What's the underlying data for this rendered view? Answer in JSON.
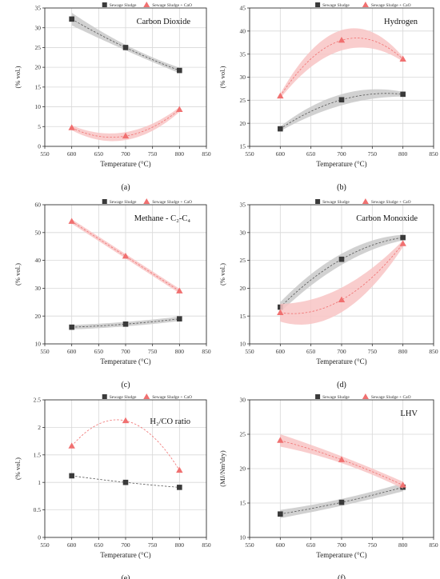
{
  "figure": {
    "x_axis_label": "Temperature (°C)",
    "legend_series": [
      "Sewage Sludge",
      "Sewage Sludge + CaO"
    ],
    "colors": {
      "sewage_sludge": "#3a3a3a",
      "sewage_sludge_cao": "#f07070",
      "band_gray": "#c9c9c9",
      "band_red": "#f8c4c4"
    }
  },
  "chart_data": [
    {
      "type": "line",
      "panel_label": "(a)",
      "title": "Carbon Dioxide",
      "xlabel": "Temperature (°C)",
      "ylabel": "(% vol.)",
      "xlim": [
        550,
        850
      ],
      "ylim": [
        0,
        35
      ],
      "xticks": [
        550,
        600,
        650,
        700,
        750,
        800,
        850
      ],
      "yticks": [
        0,
        5,
        10,
        15,
        20,
        25,
        30,
        35
      ],
      "legend_position": "top",
      "grid": true,
      "x": [
        600,
        700,
        800
      ],
      "series": [
        {
          "name": "Sewage Sludge",
          "marker": "square",
          "values": [
            32.2,
            25.0,
            19.2
          ],
          "band_halfwidth": [
            1.6,
            0.7,
            0.7
          ]
        },
        {
          "name": "Sewage Sludge + CaO",
          "marker": "triangle",
          "values": [
            4.7,
            2.6,
            9.3
          ],
          "band_halfwidth": [
            0.6,
            1.0,
            0.6
          ]
        }
      ]
    },
    {
      "type": "line",
      "panel_label": "(b)",
      "title": "Hydrogen",
      "xlabel": "Temperature (°C)",
      "ylabel": "(% vol.)",
      "xlim": [
        550,
        850
      ],
      "ylim": [
        15,
        45
      ],
      "xticks": [
        550,
        600,
        650,
        700,
        750,
        800,
        850
      ],
      "yticks": [
        15,
        20,
        25,
        30,
        35,
        40,
        45
      ],
      "legend_position": "top",
      "grid": true,
      "x": [
        600,
        700,
        800
      ],
      "series": [
        {
          "name": "Sewage Sludge",
          "marker": "square",
          "values": [
            18.8,
            25.1,
            26.3
          ],
          "band_halfwidth": [
            0.5,
            1.2,
            0.5
          ]
        },
        {
          "name": "Sewage Sludge + CaO",
          "marker": "triangle",
          "values": [
            25.9,
            38.0,
            33.9
          ],
          "band_halfwidth": [
            0.5,
            2.2,
            0.5
          ]
        }
      ]
    },
    {
      "type": "line",
      "panel_label": "(c)",
      "title": "Methane - C₂-C₄",
      "xlabel": "Temperature (°C)",
      "ylabel": "(% vol.)",
      "xlim": [
        550,
        850
      ],
      "ylim": [
        10,
        60
      ],
      "xticks": [
        550,
        600,
        650,
        700,
        750,
        800,
        850
      ],
      "yticks": [
        10,
        20,
        30,
        40,
        50,
        60
      ],
      "legend_position": "top",
      "grid": true,
      "x": [
        600,
        700,
        800
      ],
      "series": [
        {
          "name": "Sewage Sludge",
          "marker": "square",
          "values": [
            16.0,
            17.1,
            19.0
          ],
          "band_halfwidth": [
            0.8,
            0.8,
            0.8
          ]
        },
        {
          "name": "Sewage Sludge + CaO",
          "marker": "triangle",
          "values": [
            54.0,
            41.5,
            29.0
          ],
          "band_halfwidth": [
            0.8,
            0.8,
            0.8
          ]
        }
      ]
    },
    {
      "type": "line",
      "panel_label": "(d)",
      "title": "Carbon Monoxide",
      "xlabel": "Temperature (°C)",
      "ylabel": "(% vol.)",
      "xlim": [
        550,
        850
      ],
      "ylim": [
        10,
        35
      ],
      "xticks": [
        550,
        600,
        650,
        700,
        750,
        800,
        850
      ],
      "yticks": [
        10,
        15,
        20,
        25,
        30,
        35
      ],
      "legend_position": "top",
      "grid": true,
      "x": [
        600,
        700,
        800
      ],
      "series": [
        {
          "name": "Sewage Sludge",
          "marker": "square",
          "values": [
            16.6,
            25.2,
            29.1
          ],
          "band_halfwidth": [
            0.9,
            1.0,
            0.5
          ]
        },
        {
          "name": "Sewage Sludge + CaO",
          "marker": "triangle",
          "values": [
            15.6,
            17.9,
            28.0
          ],
          "band_halfwidth": [
            1.6,
            2.2,
            0.6
          ]
        }
      ]
    },
    {
      "type": "line",
      "panel_label": "(e)",
      "title": "H₂/CO ratio",
      "xlabel": "Temperature (°C)",
      "ylabel": "(% vol.)",
      "xlim": [
        550,
        850
      ],
      "ylim": [
        0.0,
        2.5
      ],
      "xticks": [
        550,
        600,
        650,
        700,
        750,
        800,
        850
      ],
      "yticks": [
        0.0,
        0.5,
        1.0,
        1.5,
        2.0,
        2.5
      ],
      "legend_position": "top",
      "grid": true,
      "x": [
        600,
        700,
        800
      ],
      "series": [
        {
          "name": "Sewage Sludge",
          "marker": "square",
          "values": [
            1.12,
            1.0,
            0.91
          ],
          "band_halfwidth": [
            0,
            0,
            0
          ]
        },
        {
          "name": "Sewage Sludge + CaO",
          "marker": "triangle",
          "values": [
            1.66,
            2.12,
            1.22
          ],
          "band_halfwidth": [
            0,
            0,
            0
          ]
        }
      ]
    },
    {
      "type": "line",
      "panel_label": "(f)",
      "title": "LHV",
      "xlabel": "Temperature (°C)",
      "ylabel": "(MJ/Nm³dry)",
      "xlim": [
        550,
        850
      ],
      "ylim": [
        10,
        30
      ],
      "xticks": [
        550,
        600,
        650,
        700,
        750,
        800,
        850
      ],
      "yticks": [
        10,
        15,
        20,
        25,
        30
      ],
      "legend_position": "top",
      "grid": true,
      "x": [
        600,
        700,
        800
      ],
      "series": [
        {
          "name": "Sewage Sludge",
          "marker": "square",
          "values": [
            13.4,
            15.1,
            17.3
          ],
          "band_halfwidth": [
            0.6,
            0.5,
            0.6
          ]
        },
        {
          "name": "Sewage Sludge + CaO",
          "marker": "triangle",
          "values": [
            24.1,
            21.3,
            17.6
          ],
          "band_halfwidth": [
            0.9,
            0.5,
            0.5
          ]
        }
      ]
    }
  ]
}
